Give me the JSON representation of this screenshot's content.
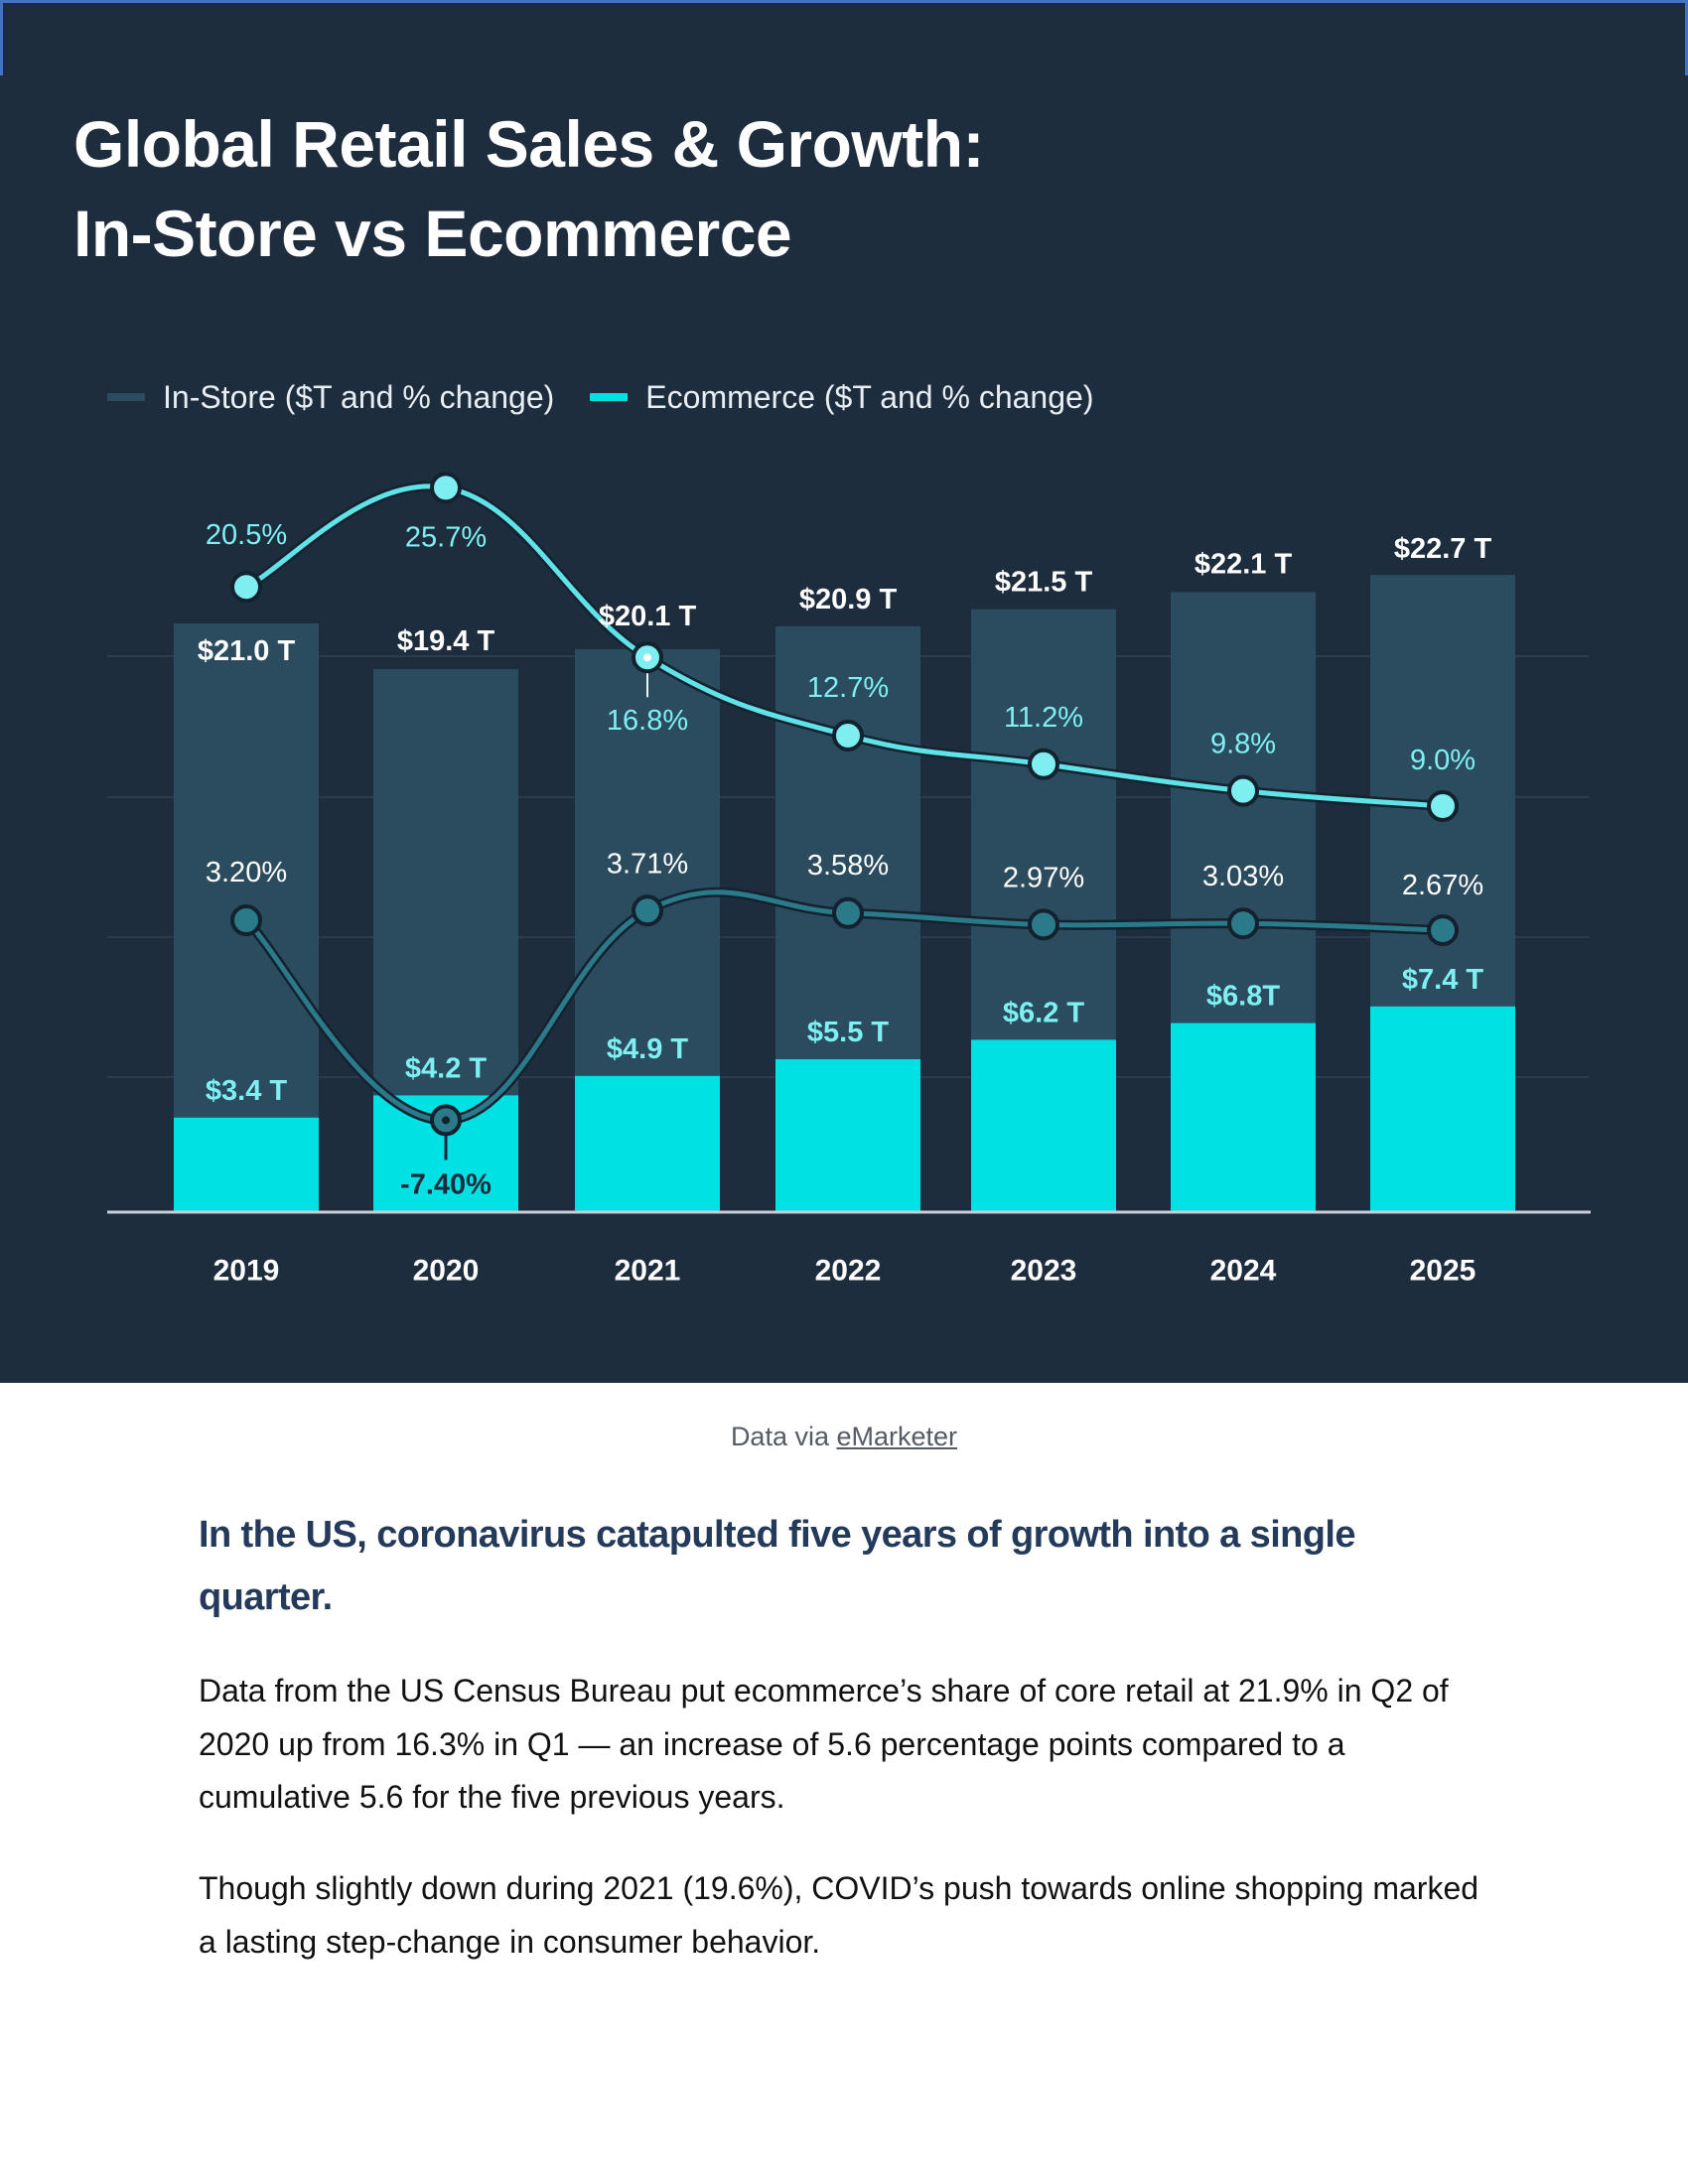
{
  "header": {
    "title_line1": "Global Retail Sales & Growth:",
    "title_line2": "In-Store vs Ecommerce"
  },
  "colors": {
    "background": "#1e2d3e",
    "instore_bar": "#2b4b5e",
    "ecommerce_bar": "#00e1e4",
    "instore_line": "#2a7a8a",
    "ecommerce_line": "#5fe3e8",
    "instore_text": "#ffffff",
    "ecommerce_text": "#7ff0f2",
    "frame": "#4472c4"
  },
  "chart_data": {
    "type": "bar",
    "title": "Global Retail Sales & Growth: In-Store vs Ecommerce",
    "xlabel": "",
    "ylabel": "",
    "grid": true,
    "legend_position": "top-left",
    "categories": [
      "2019",
      "2020",
      "2021",
      "2022",
      "2023",
      "2024",
      "2025"
    ],
    "series": [
      {
        "name": "In-Store ($T and % change)",
        "kind": "bar",
        "unit": "$T",
        "values": [
          21.0,
          19.4,
          20.1,
          20.9,
          21.5,
          22.1,
          22.7
        ],
        "labels": [
          "$21.0 T",
          "$19.4 T",
          "$20.1 T",
          "$20.9 T",
          "$21.5 T",
          "$22.1 T",
          "$22.7 T"
        ]
      },
      {
        "name": "Ecommerce ($T and % change)",
        "kind": "bar",
        "unit": "$T",
        "values": [
          3.4,
          4.2,
          4.9,
          5.5,
          6.2,
          6.8,
          7.4
        ],
        "labels": [
          "$3.4 T",
          "$4.2 T",
          "$4.9 T",
          "$5.5 T",
          "$6.2 T",
          "$6.8T",
          "$7.4 T"
        ]
      },
      {
        "name": "In-Store % change",
        "kind": "line",
        "unit": "%",
        "values": [
          3.2,
          -7.4,
          3.71,
          3.58,
          2.97,
          3.03,
          2.67
        ],
        "labels": [
          "3.20%",
          "-7.40%",
          "3.71%",
          "3.58%",
          "2.97%",
          "3.03%",
          "2.67%"
        ]
      },
      {
        "name": "Ecommerce % change",
        "kind": "line",
        "unit": "%",
        "values": [
          20.5,
          25.7,
          16.8,
          12.7,
          11.2,
          9.8,
          9.0
        ],
        "labels": [
          "20.5%",
          "25.7%",
          "16.8%",
          "12.7%",
          "11.2%",
          "9.8%",
          "9.0%"
        ]
      }
    ]
  },
  "legend": {
    "items": [
      {
        "label": "In-Store ($T and % change)"
      },
      {
        "label": "Ecommerce ($T and % change)"
      }
    ]
  },
  "source": {
    "prefix": "Data via ",
    "link_text": "eMarketer"
  },
  "article": {
    "heading": "In the US, coronavirus catapulted five years of growth into a single quarter.",
    "paragraphs": [
      "Data from the US Census Bureau put ecommerce’s share of core retail at 21.9% in Q2 of 2020 up from 16.3% in Q1 — an increase of 5.6 percentage points compared to a cumulative 5.6 for the five previous years.",
      "Though slightly down during 2021 (19.6%), COVID’s push towards online shopping marked a lasting step-change in consumer behavior."
    ]
  }
}
